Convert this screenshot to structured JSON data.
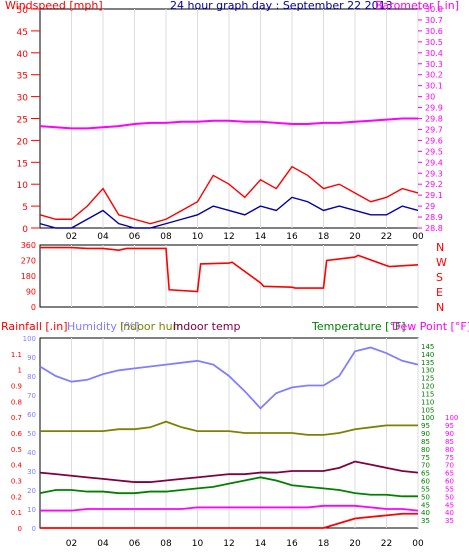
{
  "chart_data": [
    {
      "id": "wind_baro",
      "type": "line",
      "title": "24 hour graph day : September 22 2013",
      "ylabel_left": "Windspeed [mph]",
      "ylabel_right": "Barometer [.in]",
      "ylim_left": [
        0,
        50
      ],
      "ylim_right": [
        28.8,
        30.8
      ],
      "left_ticks": [
        "0",
        "5",
        "10",
        "15",
        "20",
        "25",
        "30",
        "35",
        "40",
        "45",
        "50"
      ],
      "right_ticks": [
        "28.8",
        "28.9",
        "29",
        "29.1",
        "29.2",
        "29.3",
        "29.4",
        "29.5",
        "29.6",
        "29.7",
        "29.8",
        "29.9",
        "30",
        "30.1",
        "30.2",
        "30.3",
        "30.4",
        "30.5",
        "30.6",
        "30.7",
        "30.8"
      ],
      "x_ticks": [
        "02",
        "04",
        "06",
        "08",
        "10",
        "12",
        "14",
        "16",
        "18",
        "20",
        "22",
        "00"
      ],
      "x": [
        0,
        1,
        2,
        3,
        4,
        5,
        6,
        7,
        8,
        9,
        10,
        11,
        12,
        13,
        14,
        15,
        16,
        17,
        18,
        19,
        20,
        21,
        22,
        23,
        24
      ],
      "series": [
        {
          "name": "Barometer",
          "axis": "right",
          "color": "#ff00ff",
          "values": [
            29.73,
            29.72,
            29.71,
            29.71,
            29.72,
            29.73,
            29.75,
            29.76,
            29.76,
            29.77,
            29.77,
            29.78,
            29.78,
            29.77,
            29.77,
            29.76,
            29.75,
            29.75,
            29.76,
            29.76,
            29.77,
            29.78,
            29.79,
            29.8,
            29.8
          ]
        },
        {
          "name": "Gust",
          "axis": "left",
          "color": "#ff0000",
          "values": [
            3,
            2,
            2,
            5,
            9,
            3,
            2,
            1,
            2,
            4,
            6,
            12,
            10,
            7,
            11,
            9,
            14,
            12,
            9,
            10,
            8,
            6,
            7,
            9,
            8
          ]
        },
        {
          "name": "Wind",
          "axis": "left",
          "color": "#0000aa",
          "values": [
            1,
            0,
            0,
            2,
            4,
            1,
            0,
            0,
            1,
            2,
            3,
            5,
            4,
            3,
            5,
            4,
            7,
            6,
            4,
            5,
            4,
            3,
            3,
            5,
            4
          ]
        }
      ]
    },
    {
      "id": "wind_dir",
      "type": "line",
      "ylim": [
        0,
        360
      ],
      "left_ticks": [
        "0",
        "90",
        "180",
        "270",
        "360"
      ],
      "right_labels": [
        "N",
        "W",
        "S",
        "E",
        "N"
      ],
      "x": [
        0,
        2,
        3,
        4,
        5,
        5.5,
        8,
        8.2,
        10,
        10.2,
        12,
        12.2,
        14,
        14.2,
        16,
        16.2,
        18,
        18.2,
        20,
        20.2,
        22,
        22.2,
        24
      ],
      "series": [
        {
          "name": "Direction",
          "color": "#ff0000",
          "values": [
            345,
            345,
            340,
            340,
            330,
            340,
            340,
            100,
            90,
            250,
            255,
            260,
            140,
            120,
            115,
            110,
            110,
            270,
            290,
            300,
            240,
            235,
            245
          ]
        }
      ]
    },
    {
      "id": "weather",
      "type": "line",
      "legend": [
        "Rainfall [.in]",
        "Humidity [%]",
        "Indoor hum",
        "Indoor temp",
        "Temperature [°F]",
        "Dew Point [°F]"
      ],
      "ylim_rain": [
        0,
        1.2
      ],
      "ylim_hum": [
        0,
        100
      ],
      "ylim_temp": [
        30,
        150
      ],
      "ylim_dew": [
        30,
        150
      ],
      "rain_ticks": [
        "0",
        "0.1",
        "0.2",
        "0.3",
        "0.4",
        "0.5",
        "0.6",
        "0.7",
        "0.8",
        "0.9",
        "1",
        "1.1"
      ],
      "hum_ticks": [
        "0",
        "10",
        "20",
        "30",
        "40",
        "50",
        "60",
        "70",
        "80",
        "90",
        "100"
      ],
      "temp_ticks": [
        "35",
        "40",
        "45",
        "50",
        "55",
        "60",
        "65",
        "70",
        "75",
        "80",
        "85",
        "90",
        "95",
        "100",
        "105",
        "110",
        "115",
        "120",
        "125",
        "130",
        "135",
        "140",
        "145"
      ],
      "dew_ticks": [
        "35",
        "40",
        "45",
        "50",
        "55",
        "60",
        "65",
        "70",
        "75",
        "80",
        "85",
        "90",
        "95",
        "100"
      ],
      "x_ticks": [
        "02",
        "04",
        "06",
        "08",
        "10",
        "12",
        "14",
        "16",
        "18",
        "20",
        "22",
        "00"
      ],
      "x": [
        0,
        1,
        2,
        3,
        4,
        5,
        6,
        7,
        8,
        9,
        10,
        11,
        12,
        13,
        14,
        15,
        16,
        17,
        18,
        19,
        20,
        21,
        22,
        23,
        24
      ],
      "series": [
        {
          "name": "Humidity [%]",
          "color": "#8080ff",
          "values": [
            85,
            80,
            77,
            78,
            81,
            83,
            84,
            85,
            86,
            87,
            88,
            86,
            80,
            72,
            63,
            71,
            74,
            75,
            75,
            80,
            93,
            95,
            92,
            88,
            86
          ]
        },
        {
          "name": "Indoor temp",
          "color": "#800040",
          "values": [
            65,
            64,
            63,
            62,
            61,
            60,
            59,
            59,
            60,
            61,
            62,
            63,
            64,
            64,
            65,
            65,
            66,
            66,
            66,
            68,
            72,
            70,
            68,
            66,
            65
          ]
        },
        {
          "name": "Indoor hum",
          "color": "#808000",
          "values": [
            51,
            51,
            51,
            51,
            51,
            52,
            52,
            53,
            56,
            53,
            51,
            51,
            51,
            50,
            50,
            50,
            50,
            49,
            49,
            50,
            52,
            53,
            54,
            54,
            54
          ]
        },
        {
          "name": "Temperature [°F]",
          "color": "#008000",
          "values": [
            52,
            54,
            54,
            53,
            53,
            52,
            52,
            53,
            53,
            54,
            55,
            56,
            58,
            60,
            62,
            60,
            57,
            56,
            55,
            54,
            52,
            51,
            51,
            50,
            50
          ]
        },
        {
          "name": "Dew Point [°F]",
          "color": "#ff00ff",
          "values": [
            41,
            41,
            41,
            42,
            42,
            42,
            42,
            42,
            42,
            42,
            43,
            43,
            43,
            43,
            43,
            43,
            43,
            43,
            44,
            44,
            44,
            43,
            42,
            42,
            41
          ]
        },
        {
          "name": "Rainfall [.in]",
          "color": "#ff0000",
          "values": [
            0,
            0,
            0,
            0,
            0,
            0,
            0,
            0,
            0,
            0,
            0,
            0,
            0,
            0,
            0,
            0,
            0,
            0,
            0,
            0.03,
            0.06,
            0.07,
            0.08,
            0.09,
            0.09
          ]
        }
      ]
    }
  ]
}
